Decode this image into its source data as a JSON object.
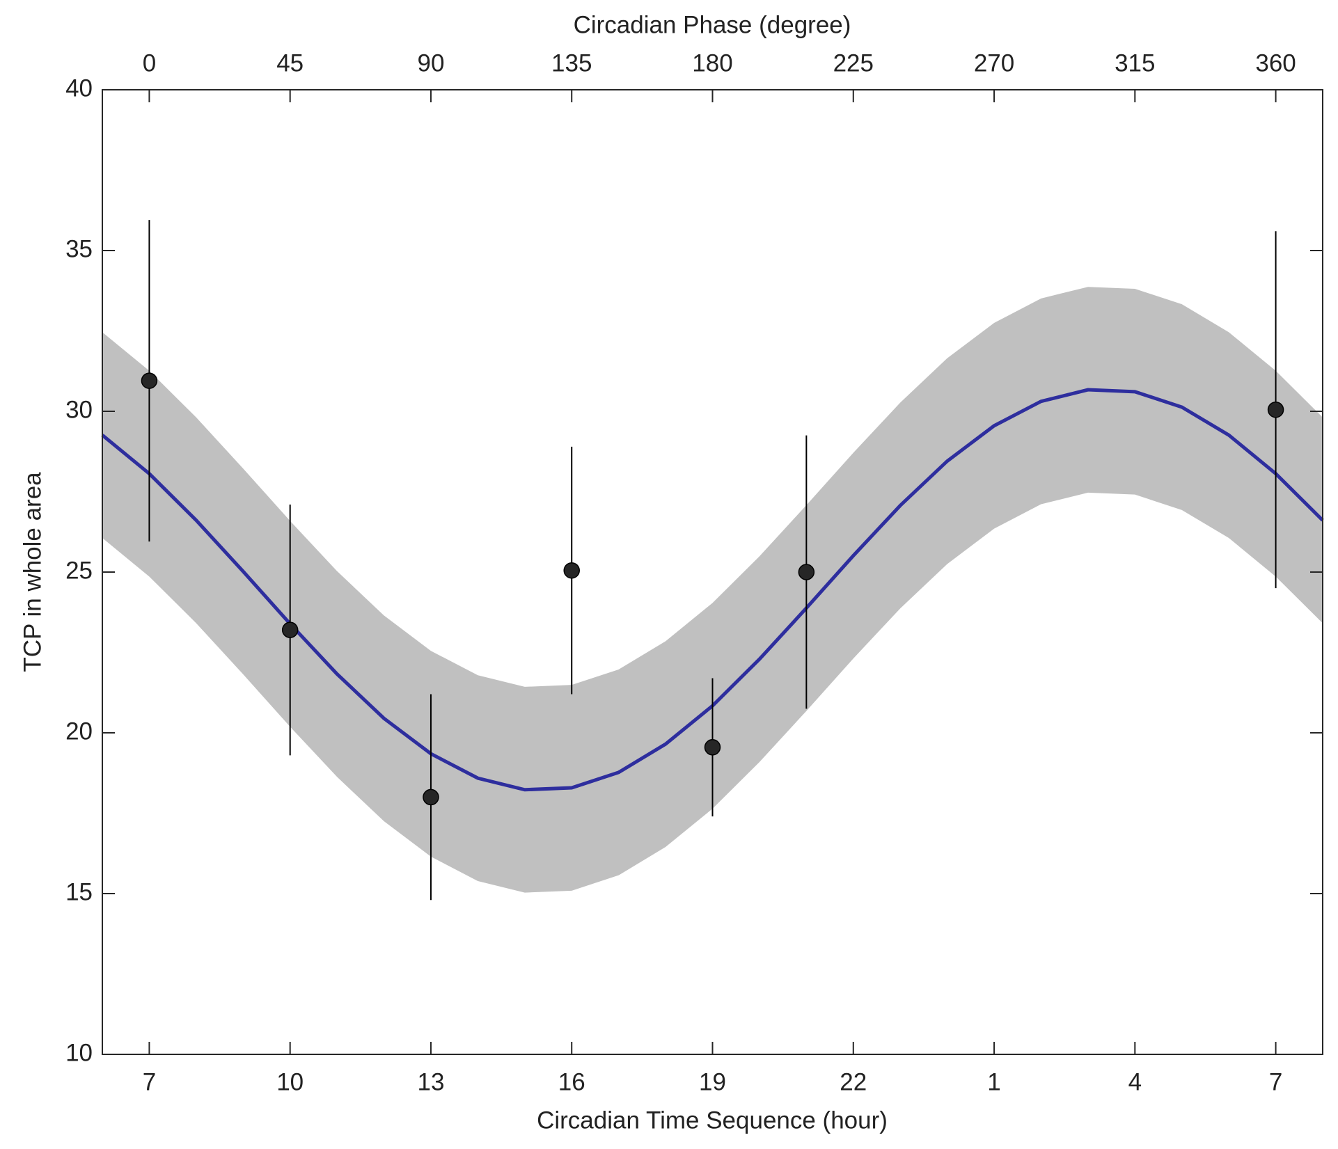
{
  "chart_data": {
    "type": "line",
    "xlabel": "Circadian Time Sequence (hour)",
    "x2label": "Circadian Phase (degree)",
    "ylabel": "TCP in whole area",
    "xlim": [
      6,
      32
    ],
    "xticks": [
      7,
      10,
      13,
      16,
      19,
      22,
      {
        "value": 25,
        "label": "1"
      },
      {
        "value": 28,
        "label": "4"
      },
      {
        "value": 31,
        "label": "7"
      }
    ],
    "x2lim": [
      -15,
      375
    ],
    "x2ticks": [
      0,
      45,
      90,
      135,
      180,
      225,
      270,
      315,
      360
    ],
    "ylim": [
      10,
      40
    ],
    "yticks": [
      10,
      15,
      20,
      25,
      30,
      35,
      40
    ],
    "x": [
      6,
      7,
      8,
      9,
      10,
      11,
      12,
      13,
      14,
      15,
      16,
      17,
      18,
      19,
      20,
      21,
      22,
      23,
      24,
      25,
      26,
      27,
      28,
      29,
      30,
      31,
      32
    ],
    "series": [
      {
        "color": "#2e2e9e",
        "values": [
          29.26,
          28.06,
          26.61,
          25.02,
          23.39,
          21.83,
          20.45,
          19.35,
          18.59,
          18.23,
          18.29,
          18.77,
          19.65,
          20.84,
          22.29,
          23.88,
          25.51,
          27.07,
          28.45,
          29.55,
          30.31,
          30.67,
          30.61,
          30.13,
          29.26,
          28.06,
          26.61
        ]
      }
    ],
    "band": {
      "color": "#c0c0c0",
      "lower": [
        26.06,
        24.86,
        23.41,
        21.82,
        20.19,
        18.63,
        17.25,
        16.15,
        15.39,
        15.03,
        15.09,
        15.57,
        16.45,
        17.64,
        19.09,
        20.68,
        22.31,
        23.87,
        25.25,
        26.35,
        27.11,
        27.47,
        27.41,
        26.93,
        26.06,
        24.86,
        23.41
      ],
      "upper": [
        32.46,
        31.26,
        29.81,
        28.22,
        26.59,
        25.03,
        23.65,
        22.55,
        21.79,
        21.43,
        21.49,
        21.97,
        22.85,
        24.04,
        25.49,
        27.08,
        28.71,
        30.27,
        31.65,
        32.75,
        33.51,
        33.87,
        33.81,
        33.33,
        32.46,
        31.26,
        29.81
      ]
    },
    "points": {
      "color": "#262626",
      "x": [
        7,
        10,
        13,
        16,
        19,
        21,
        31
      ],
      "values": [
        30.95,
        23.2,
        18.0,
        25.05,
        19.55,
        25.0,
        30.05
      ],
      "errors": [
        5.0,
        3.9,
        3.2,
        3.85,
        2.15,
        4.25,
        5.55
      ]
    }
  }
}
